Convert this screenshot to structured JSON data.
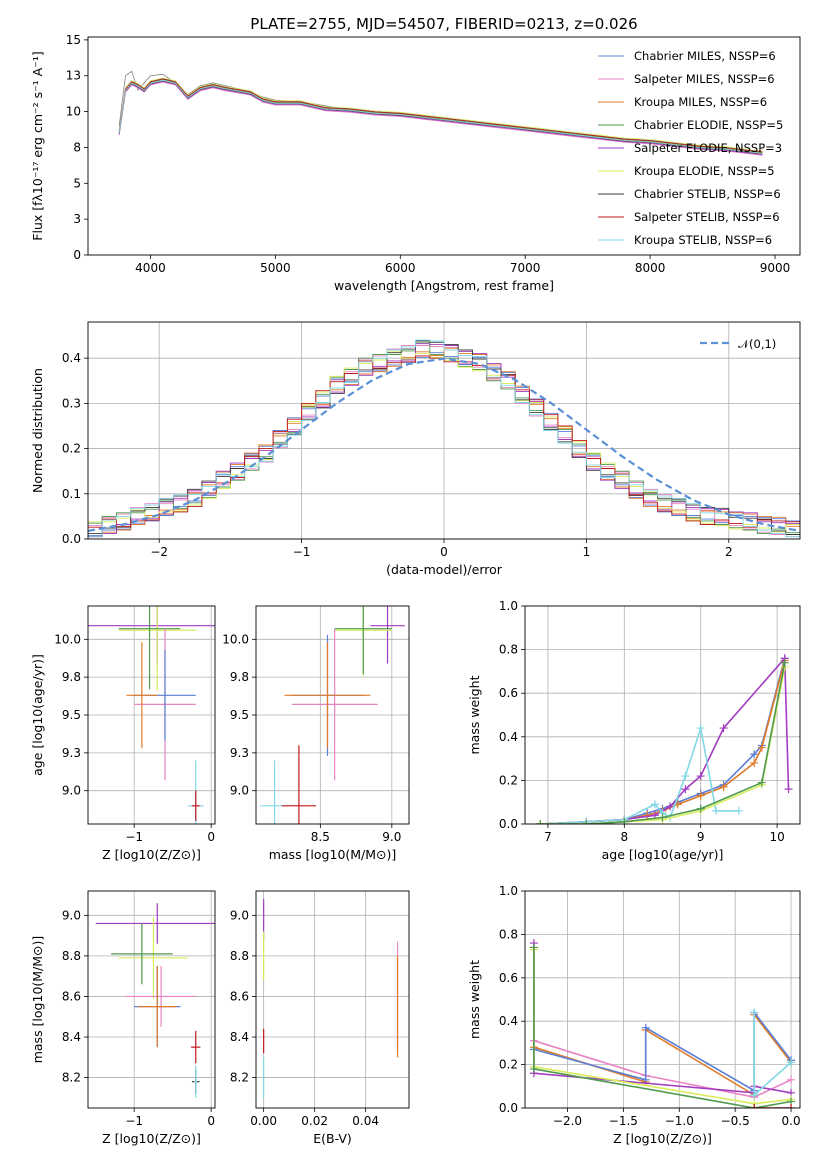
{
  "figure": {
    "title": "PLATE=2755, MJD=54507, FIBERID=0213, z=0.026"
  },
  "series_colors": {
    "chabrier_miles": "#5b7fd6",
    "salpeter_miles": "#e884c4",
    "kroupa_miles": "#e07b28",
    "chabrier_elodie": "#4e9a4e",
    "salpeter_elodie": "#a23cc0",
    "kroupa_elodie": "#d9ec5c",
    "chabrier_stelib": "#3c3c3c",
    "salpeter_stelib": "#c0181c",
    "kroupa_stelib": "#80d8e6",
    "data_grey": "#808080",
    "gaussian": "#5b8fd6"
  },
  "chart_data": [
    {
      "id": "spectrum",
      "type": "line",
      "title": "PLATE=2755, MJD=54507, FIBERID=0213, z=0.026",
      "xlabel": "wavelength [Angstrom, rest frame]",
      "ylabel": "Flux [fλ10⁻¹⁷ erg cm⁻² s⁻¹ A⁻¹]",
      "xlim": [
        3500,
        9200
      ],
      "ylim": [
        0,
        15.2
      ],
      "xticks": [
        4000,
        5000,
        6000,
        7000,
        8000,
        9000
      ],
      "yticks": [
        0.0,
        2.5,
        5.0,
        7.5,
        10.0,
        12.5,
        15.0
      ],
      "grid": false,
      "legend_position": "upper-right",
      "legend": [
        {
          "label": "Chabrier MILES, NSSP=6",
          "key": "chabrier_miles"
        },
        {
          "label": "Salpeter MILES, NSSP=6",
          "key": "salpeter_miles"
        },
        {
          "label": "Kroupa MILES, NSSP=6",
          "key": "kroupa_miles"
        },
        {
          "label": "Chabrier ELODIE, NSSP=5",
          "key": "chabrier_elodie"
        },
        {
          "label": "Salpeter ELODIE, NSSP=3",
          "key": "salpeter_elodie"
        },
        {
          "label": "Kroupa ELODIE, NSSP=5",
          "key": "kroupa_elodie"
        },
        {
          "label": "Chabrier STELIB, NSSP=6",
          "key": "chabrier_stelib"
        },
        {
          "label": "Salpeter STELIB, NSSP=6",
          "key": "salpeter_stelib"
        },
        {
          "label": "Kroupa STELIB, NSSP=6",
          "key": "kroupa_stelib"
        }
      ],
      "model_x": [
        3750,
        3800,
        3850,
        3900,
        3950,
        4000,
        4100,
        4200,
        4300,
        4400,
        4500,
        4600,
        4800,
        4900,
        5000,
        5200,
        5400,
        5600,
        5800,
        6000,
        6200,
        6400,
        6600,
        6800,
        7000,
        7200,
        7400,
        7600,
        7800,
        8000,
        8200,
        8400,
        8600,
        8800,
        8900
      ],
      "model_y": [
        8.5,
        11.5,
        12.0,
        11.8,
        11.5,
        12.0,
        12.2,
        12.0,
        11.0,
        11.6,
        11.8,
        11.6,
        11.3,
        10.8,
        10.6,
        10.6,
        10.2,
        10.1,
        9.9,
        9.8,
        9.6,
        9.4,
        9.2,
        9.0,
        8.8,
        8.6,
        8.4,
        8.2,
        8.0,
        7.9,
        7.7,
        7.5,
        7.4,
        7.2,
        7.1
      ],
      "data_x": [
        3750,
        3800,
        3850,
        3900,
        3950,
        4000,
        4100,
        4200,
        4300,
        4400,
        4500,
        4600,
        4800,
        4900,
        5000,
        5200,
        5400,
        5600,
        5800,
        6000,
        6200,
        6400,
        6600,
        6800,
        7000,
        7200,
        7400,
        7600
      ],
      "data_y": [
        9.0,
        12.5,
        12.8,
        11.5,
        12.0,
        12.5,
        12.6,
        12.0,
        11.2,
        11.8,
        12.0,
        11.8,
        11.4,
        11.0,
        10.8,
        10.7,
        10.4,
        10.1,
        10.0,
        9.8,
        9.6,
        9.5,
        9.3,
        9.0,
        8.8,
        8.6,
        8.4,
        8.2
      ]
    },
    {
      "id": "residuals",
      "type": "line",
      "xlabel": "(data-model)/error",
      "ylabel": "Normed distribution",
      "xlim": [
        -2.5,
        2.5
      ],
      "ylim": [
        0,
        0.48
      ],
      "xticks": [
        -2,
        -1,
        0,
        1,
        2
      ],
      "yticks": [
        0.0,
        0.1,
        0.2,
        0.3,
        0.4
      ],
      "grid": true,
      "legend_position": "upper-right",
      "legend": [
        {
          "label": "𝒩(0,1)",
          "key": "gaussian"
        }
      ],
      "bin_width": 0.1,
      "hist_centers": [
        -2.45,
        -2.35,
        -2.25,
        -2.15,
        -2.05,
        -1.95,
        -1.85,
        -1.75,
        -1.65,
        -1.55,
        -1.45,
        -1.35,
        -1.25,
        -1.15,
        -1.05,
        -0.95,
        -0.85,
        -0.75,
        -0.65,
        -0.55,
        -0.45,
        -0.35,
        -0.25,
        -0.15,
        -0.05,
        0.05,
        0.15,
        0.25,
        0.35,
        0.45,
        0.55,
        0.65,
        0.75,
        0.85,
        0.95,
        1.05,
        1.15,
        1.25,
        1.35,
        1.45,
        1.55,
        1.65,
        1.75,
        1.85,
        1.95,
        2.05,
        2.15,
        2.25,
        2.35,
        2.45
      ],
      "hist_values": [
        0.02,
        0.03,
        0.04,
        0.05,
        0.06,
        0.07,
        0.08,
        0.09,
        0.11,
        0.13,
        0.15,
        0.17,
        0.19,
        0.22,
        0.25,
        0.28,
        0.31,
        0.34,
        0.36,
        0.38,
        0.39,
        0.4,
        0.41,
        0.42,
        0.42,
        0.41,
        0.4,
        0.39,
        0.37,
        0.35,
        0.32,
        0.29,
        0.26,
        0.23,
        0.2,
        0.17,
        0.15,
        0.13,
        0.11,
        0.09,
        0.08,
        0.07,
        0.06,
        0.05,
        0.05,
        0.04,
        0.04,
        0.03,
        0.03,
        0.02
      ],
      "gaussian_x": [
        -2.5,
        -2.25,
        -2.0,
        -1.75,
        -1.5,
        -1.25,
        -1.0,
        -0.75,
        -0.5,
        -0.25,
        0.0,
        0.25,
        0.5,
        0.75,
        1.0,
        1.25,
        1.5,
        1.75,
        2.0,
        2.25,
        2.5
      ],
      "gaussian_y": [
        0.018,
        0.032,
        0.054,
        0.086,
        0.13,
        0.183,
        0.242,
        0.301,
        0.352,
        0.387,
        0.399,
        0.387,
        0.352,
        0.301,
        0.242,
        0.183,
        0.13,
        0.086,
        0.054,
        0.032,
        0.018
      ]
    },
    {
      "id": "age_vs_Z",
      "type": "scatter",
      "xlabel": "Z [log10(Z/Z⊙)]",
      "ylabel": "age [log10(age/yr)]",
      "xlim": [
        -1.6,
        0.05
      ],
      "ylim": [
        8.78,
        10.22
      ],
      "xticks": [
        -1,
        0
      ],
      "yticks": [
        9.0,
        9.25,
        9.5,
        9.75,
        10.0
      ],
      "grid": true,
      "crosses": [
        {
          "key": "salpeter_elodie",
          "x": -0.7,
          "y": 10.09,
          "xerr": 0.9,
          "yerr": 0.25
        },
        {
          "key": "kroupa_elodie",
          "x": -0.7,
          "y": 10.06,
          "xerr": 0.5,
          "yerr": 0.4
        },
        {
          "key": "chabrier_elodie",
          "x": -0.8,
          "y": 10.07,
          "xerr": 0.4,
          "yerr": 0.4
        },
        {
          "key": "salpeter_miles",
          "x": -0.6,
          "y": 9.57,
          "xerr": 0.4,
          "yerr": 0.5
        },
        {
          "key": "chabrier_miles",
          "x": -0.6,
          "y": 9.63,
          "xerr": 0.4,
          "yerr": 0.3
        },
        {
          "key": "kroupa_miles",
          "x": -0.9,
          "y": 9.63,
          "xerr": 0.2,
          "yerr": 0.35
        },
        {
          "key": "kroupa_stelib",
          "x": -0.2,
          "y": 8.9,
          "xerr": 0.1,
          "yerr": 0.3
        },
        {
          "key": "salpeter_stelib",
          "x": -0.2,
          "y": 8.9,
          "xerr": 0.05,
          "yerr": 0.1
        }
      ]
    },
    {
      "id": "age_vs_mass",
      "type": "scatter",
      "xlabel": "mass [log10(M/M⊙)]",
      "ylabel": "",
      "xlim": [
        8.05,
        9.12
      ],
      "ylim": [
        8.78,
        10.22
      ],
      "xticks": [
        8.5,
        9.0
      ],
      "yticks": [
        9.0,
        9.25,
        9.5,
        9.75,
        10.0
      ],
      "grid": true,
      "crosses": [
        {
          "key": "salpeter_elodie",
          "x": 8.97,
          "y": 10.09,
          "xerr": 0.12,
          "yerr": 0.25
        },
        {
          "key": "kroupa_elodie",
          "x": 8.8,
          "y": 10.06,
          "xerr": 0.2,
          "yerr": 0.3
        },
        {
          "key": "chabrier_elodie",
          "x": 8.8,
          "y": 10.07,
          "xerr": 0.2,
          "yerr": 0.3
        },
        {
          "key": "salpeter_miles",
          "x": 8.6,
          "y": 9.57,
          "xerr": 0.3,
          "yerr": 0.5
        },
        {
          "key": "chabrier_miles",
          "x": 8.55,
          "y": 9.63,
          "xerr": 0.25,
          "yerr": 0.4
        },
        {
          "key": "kroupa_miles",
          "x": 8.55,
          "y": 9.63,
          "xerr": 0.3,
          "yerr": 0.35
        },
        {
          "key": "kroupa_stelib",
          "x": 8.18,
          "y": 8.9,
          "xerr": 0.1,
          "yerr": 0.3
        },
        {
          "key": "salpeter_stelib",
          "x": 8.35,
          "y": 8.9,
          "xerr": 0.12,
          "yerr": 0.4
        }
      ]
    },
    {
      "id": "weight_vs_age",
      "type": "line",
      "xlabel": "age [log10(age/yr)]",
      "ylabel": "mass weight",
      "xlim": [
        6.7,
        10.3
      ],
      "ylim": [
        0,
        1
      ],
      "xticks": [
        7,
        8,
        9,
        10
      ],
      "yticks": [
        0.0,
        0.2,
        0.4,
        0.6,
        0.8,
        1.0
      ],
      "grid": true,
      "series": [
        {
          "key": "chabrier_miles",
          "x": [
            6.9,
            7.5,
            8.0,
            8.3,
            8.5,
            8.7,
            9.0,
            9.3,
            9.7,
            9.8,
            10.1
          ],
          "y": [
            0.0,
            0.01,
            0.02,
            0.05,
            0.07,
            0.1,
            0.14,
            0.18,
            0.32,
            0.36,
            0.76
          ]
        },
        {
          "key": "kroupa_miles",
          "x": [
            6.9,
            7.5,
            8.0,
            8.3,
            8.5,
            8.7,
            9.0,
            9.3,
            9.7,
            9.8,
            10.1
          ],
          "y": [
            0.0,
            0.01,
            0.02,
            0.04,
            0.06,
            0.09,
            0.13,
            0.17,
            0.28,
            0.35,
            0.75
          ]
        },
        {
          "key": "salpeter_elodie",
          "x": [
            6.9,
            7.5,
            8.0,
            8.4,
            8.6,
            8.8,
            9.0,
            9.3,
            10.1,
            10.15
          ],
          "y": [
            0.0,
            0.01,
            0.02,
            0.04,
            0.08,
            0.16,
            0.22,
            0.44,
            0.76,
            0.16
          ]
        },
        {
          "key": "kroupa_stelib",
          "x": [
            6.9,
            7.5,
            8.0,
            8.4,
            8.5,
            8.6,
            8.8,
            9.0,
            9.2,
            9.5
          ],
          "y": [
            0.0,
            0.01,
            0.02,
            0.09,
            0.05,
            0.03,
            0.22,
            0.44,
            0.06,
            0.06
          ]
        },
        {
          "key": "kroupa_elodie",
          "x": [
            6.9,
            7.5,
            8.0,
            8.5,
            9.0,
            9.8,
            10.1
          ],
          "y": [
            0.0,
            0.0,
            0.01,
            0.02,
            0.06,
            0.18,
            0.72
          ]
        },
        {
          "key": "chabrier_elodie",
          "x": [
            6.9,
            7.5,
            8.0,
            8.5,
            9.0,
            9.8,
            10.1
          ],
          "y": [
            0.0,
            0.0,
            0.01,
            0.03,
            0.07,
            0.19,
            0.74
          ]
        }
      ]
    },
    {
      "id": "mass_vs_Z",
      "type": "scatter",
      "xlabel": "Z [log10(Z/Z⊙)]",
      "ylabel": "mass [log10(M/M⊙)]",
      "xlim": [
        -1.6,
        0.05
      ],
      "ylim": [
        8.05,
        9.12
      ],
      "xticks": [
        -1,
        0
      ],
      "yticks": [
        8.2,
        8.4,
        8.6,
        8.8,
        9.0
      ],
      "grid": true,
      "crosses": [
        {
          "key": "salpeter_elodie",
          "x": -0.7,
          "y": 8.96,
          "xerr": 0.8,
          "yerr": 0.1
        },
        {
          "key": "kroupa_elodie",
          "x": -0.75,
          "y": 8.79,
          "xerr": 0.45,
          "yerr": 0.2
        },
        {
          "key": "chabrier_elodie",
          "x": -0.9,
          "y": 8.81,
          "xerr": 0.4,
          "yerr": 0.15
        },
        {
          "key": "salpeter_miles",
          "x": -0.65,
          "y": 8.6,
          "xerr": 0.45,
          "yerr": 0.15
        },
        {
          "key": "chabrier_miles",
          "x": -0.7,
          "y": 8.55,
          "xerr": 0.3,
          "yerr": 0.2
        },
        {
          "key": "kroupa_miles",
          "x": -0.7,
          "y": 8.55,
          "xerr": 0.25,
          "yerr": 0.2
        },
        {
          "key": "salpeter_stelib",
          "x": -0.2,
          "y": 8.35,
          "xerr": 0.06,
          "yerr": 0.08
        },
        {
          "key": "chabrier_stelib",
          "x": -0.2,
          "y": 8.18,
          "xerr": 0.05,
          "yerr": 0.06
        },
        {
          "key": "kroupa_stelib",
          "x": -0.2,
          "y": 8.18,
          "xerr": 0.02,
          "yerr": 0.08
        }
      ]
    },
    {
      "id": "mass_vs_ebv",
      "type": "scatter",
      "xlabel": "E(B-V)",
      "ylabel": "",
      "xlim": [
        -0.003,
        0.057
      ],
      "ylim": [
        8.05,
        9.12
      ],
      "xticks": [
        0.0,
        0.02,
        0.04
      ],
      "yticks": [
        8.2,
        8.4,
        8.6,
        8.8,
        9.0
      ],
      "grid": true,
      "crosses": [
        {
          "key": "salpeter_elodie",
          "x": 0.0,
          "y": 8.98,
          "xerr": 0.0,
          "yerr": 0.1
        },
        {
          "key": "kroupa_elodie",
          "x": 0.0,
          "y": 8.8,
          "xerr": 0.0,
          "yerr": 0.12
        },
        {
          "key": "salpeter_stelib",
          "x": 0.0,
          "y": 8.38,
          "xerr": 0.0,
          "yerr": 0.06
        },
        {
          "key": "kroupa_stelib",
          "x": 0.0,
          "y": 8.2,
          "xerr": 0.0,
          "yerr": 0.1
        },
        {
          "key": "salpeter_miles",
          "x": 0.0525,
          "y": 8.6,
          "xerr": 0.0,
          "yerr": 0.27
        },
        {
          "key": "kroupa_miles",
          "x": 0.0525,
          "y": 8.55,
          "xerr": 0.0,
          "yerr": 0.25
        }
      ]
    },
    {
      "id": "weight_vs_Z",
      "type": "line",
      "xlabel": "Z [log10(Z/Z⊙)]",
      "ylabel": "mass weight",
      "xlim": [
        -2.38,
        0.08
      ],
      "ylim": [
        0,
        1
      ],
      "xticks": [
        -2.0,
        -1.5,
        -1.0,
        -0.5,
        0.0
      ],
      "yticks": [
        0.0,
        0.2,
        0.4,
        0.6,
        0.8,
        1.0
      ],
      "grid": true,
      "series": [
        {
          "key": "salpeter_miles",
          "x": [
            -2.3,
            -1.3,
            -0.33,
            0.0
          ],
          "y": [
            0.31,
            0.15,
            0.05,
            0.13
          ]
        },
        {
          "key": "kroupa_miles",
          "x": [
            -2.3,
            -1.3,
            -1.3,
            -0.33,
            -0.33,
            0.0
          ],
          "y": [
            0.28,
            0.12,
            0.36,
            0.06,
            0.43,
            0.21
          ]
        },
        {
          "key": "chabrier_miles",
          "x": [
            -2.3,
            -1.3,
            -1.3,
            -0.33,
            -0.33,
            0.0
          ],
          "y": [
            0.27,
            0.13,
            0.37,
            0.08,
            0.44,
            0.22
          ]
        },
        {
          "key": "salpeter_elodie",
          "x": [
            -2.3,
            -2.3,
            -0.33,
            -0.33,
            0.0
          ],
          "y": [
            0.76,
            0.16,
            0.07,
            0.1,
            0.07
          ]
        },
        {
          "key": "kroupa_elodie",
          "x": [
            -2.3,
            -2.3,
            -0.33,
            0.0
          ],
          "y": [
            0.73,
            0.19,
            0.02,
            0.04
          ]
        },
        {
          "key": "chabrier_elodie",
          "x": [
            -2.3,
            -2.3,
            -0.33,
            0.0
          ],
          "y": [
            0.74,
            0.18,
            0.0,
            0.03
          ]
        },
        {
          "key": "kroupa_stelib",
          "x": [
            -0.33,
            -0.33,
            0.0
          ],
          "y": [
            0.44,
            0.06,
            0.21
          ]
        },
        {
          "key": "salpeter_stelib",
          "x": [
            -0.33,
            0.0
          ],
          "y": [
            0.0,
            0.0
          ]
        }
      ]
    }
  ]
}
